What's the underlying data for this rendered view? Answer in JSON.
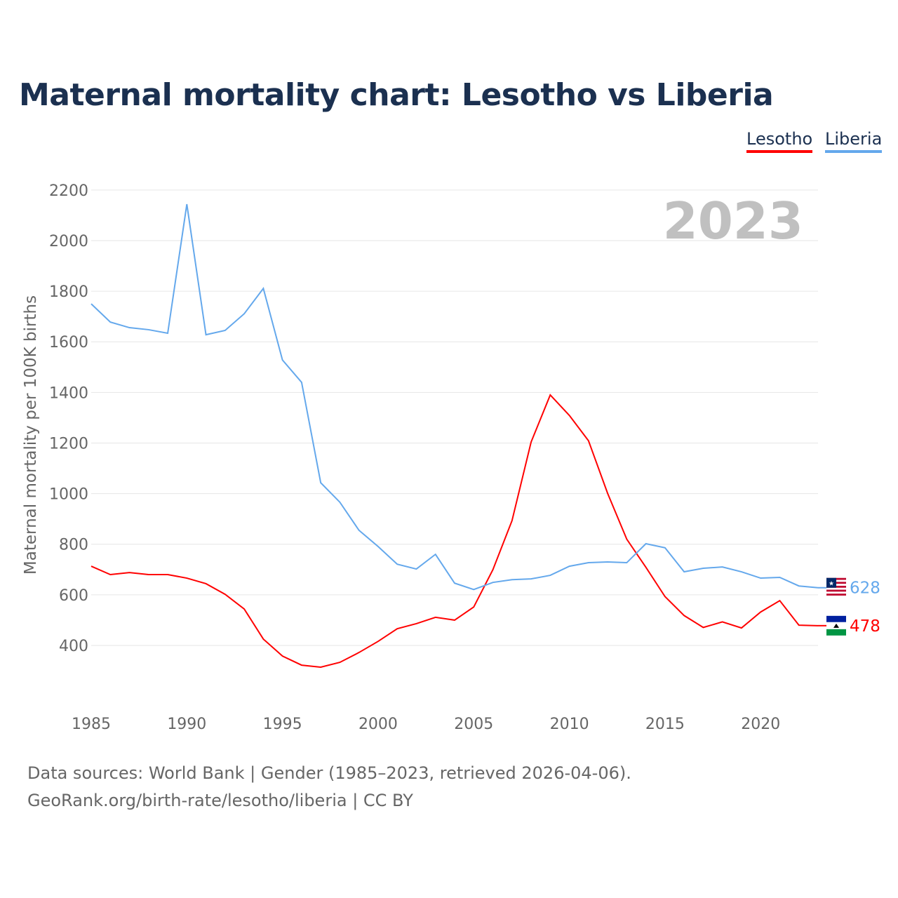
{
  "chart_data": {
    "type": "line",
    "title": "Maternal mortality chart: Lesotho vs Liberia",
    "ylabel": "Maternal mortality per 100K births",
    "xlabel": "",
    "year_label": "2023",
    "ylim": [
      0,
      2200
    ],
    "xlim": [
      1985,
      2023
    ],
    "yticks": [
      400,
      600,
      800,
      1000,
      1200,
      1400,
      1600,
      1800,
      2000,
      2200
    ],
    "xticks": [
      1985,
      1990,
      1995,
      2000,
      2005,
      2010,
      2015,
      2020
    ],
    "grid": true,
    "legend_position": "top-right",
    "x": [
      1985,
      1986,
      1987,
      1988,
      1989,
      1990,
      1991,
      1992,
      1993,
      1994,
      1995,
      1996,
      1997,
      1998,
      1999,
      2000,
      2001,
      2002,
      2003,
      2004,
      2005,
      2006,
      2007,
      2008,
      2009,
      2010,
      2011,
      2012,
      2013,
      2014,
      2015,
      2016,
      2017,
      2018,
      2019,
      2020,
      2021,
      2022,
      2023
    ],
    "series": [
      {
        "name": "Lesotho",
        "color": "#ff0000",
        "end_label": "478",
        "values": [
          713,
          680,
          688,
          680,
          680,
          666,
          644,
          602,
          544,
          425,
          358,
          322,
          314,
          333,
          372,
          416,
          466,
          486,
          511,
          500,
          552,
          699,
          893,
          1204,
          1390,
          1309,
          1209,
          1001,
          820,
          709,
          593,
          518,
          471,
          493,
          469,
          532,
          577,
          480,
          478
        ]
      },
      {
        "name": "Liberia",
        "color": "#64a8ec",
        "end_label": "628",
        "values": [
          1750,
          1678,
          1656,
          1648,
          1634,
          2144,
          1628,
          1645,
          1711,
          1811,
          1528,
          1440,
          1043,
          966,
          855,
          791,
          721,
          702,
          760,
          646,
          621,
          649,
          660,
          663,
          677,
          713,
          727,
          730,
          727,
          802,
          786,
          691,
          705,
          710,
          691,
          666,
          669,
          635,
          628
        ]
      }
    ]
  },
  "footer": {
    "line1": "Data sources: World Bank | Gender (1985–2023, retrieved 2026-04-06).",
    "line2": "GeoRank.org/birth-rate/lesotho/liberia | CC BY"
  }
}
